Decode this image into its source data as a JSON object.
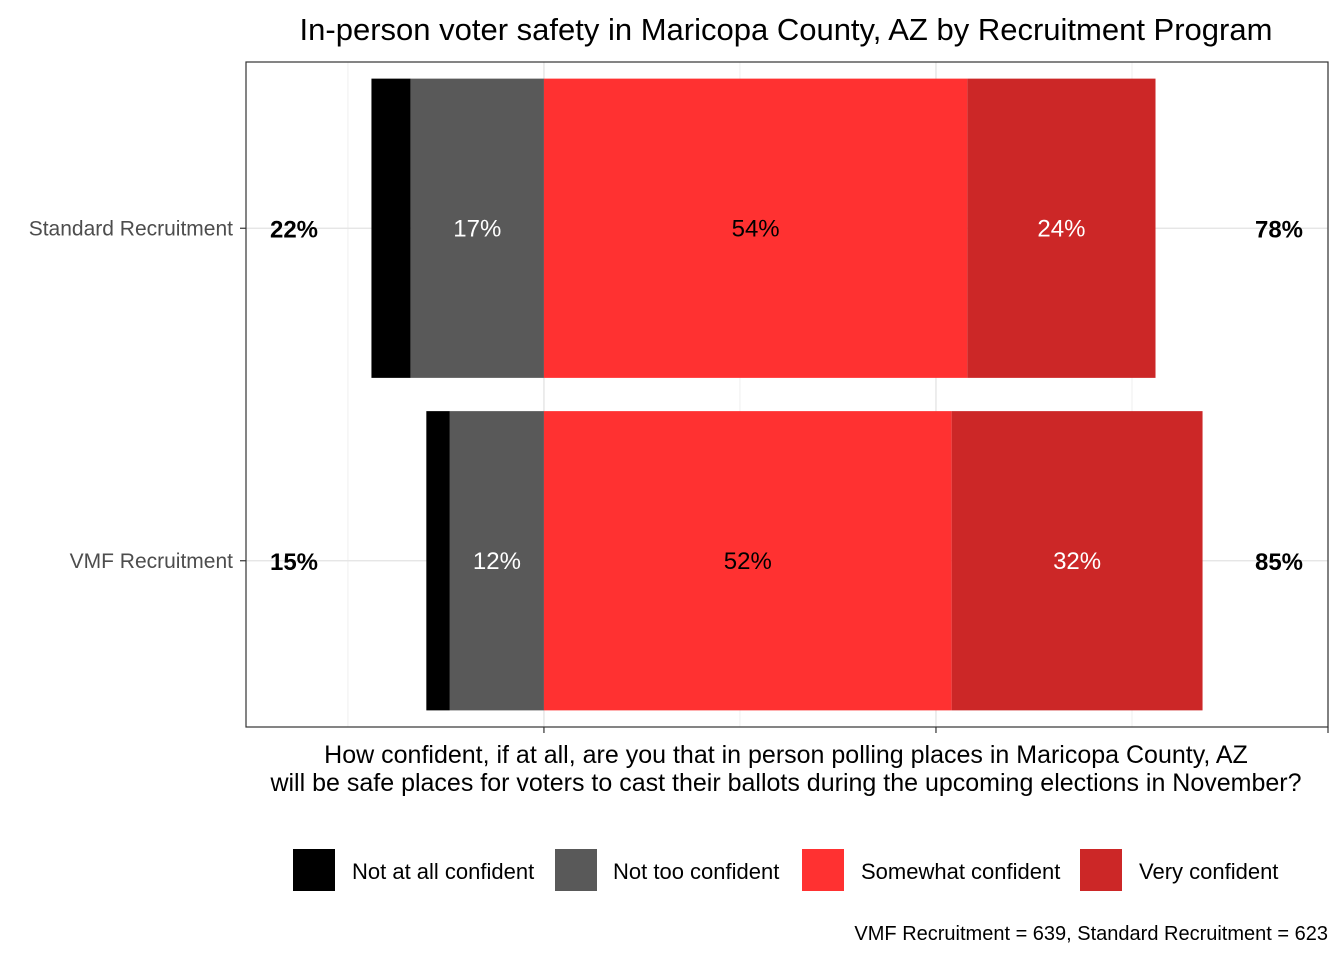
{
  "chart_data": {
    "type": "bar",
    "orientation": "horizontal",
    "stacked": "diverging",
    "title": "In-person voter safety in Maricopa County, AZ by Recruitment Program",
    "xlabel": "How confident, if at all, are you that in person polling places in Maricopa County, AZ\nwill be safe places for voters to cast their ballots during the upcoming elections in November?",
    "ylabel": "",
    "categories": [
      "Standard Recruitment",
      "VMF Recruitment"
    ],
    "series": [
      {
        "name": "Not at all confident",
        "color": "#000000",
        "label_color": "#000000",
        "values": [
          5,
          3
        ],
        "labels": [
          "",
          ""
        ]
      },
      {
        "name": "Not too confident",
        "color": "#595959",
        "label_color": "#ffffff",
        "values": [
          17,
          12
        ],
        "labels": [
          "17%",
          "12%"
        ]
      },
      {
        "name": "Somewhat confident",
        "color": "#ff3131",
        "label_color": "#000000",
        "values": [
          54,
          52
        ],
        "labels": [
          "54%",
          "52%"
        ]
      },
      {
        "name": "Very confident",
        "color": "#cc2727",
        "label_color": "#ffffff",
        "values": [
          24,
          32
        ],
        "labels": [
          "24%",
          "32%"
        ]
      }
    ],
    "negative_totals": [
      "22%",
      "15%"
    ],
    "positive_totals": [
      "78%",
      "85%"
    ],
    "xlim": [
      -38,
      100
    ],
    "grid": true,
    "legend_position": "bottom",
    "note": "VMF Recruitment = 639, Standard Recruitment = 623"
  }
}
